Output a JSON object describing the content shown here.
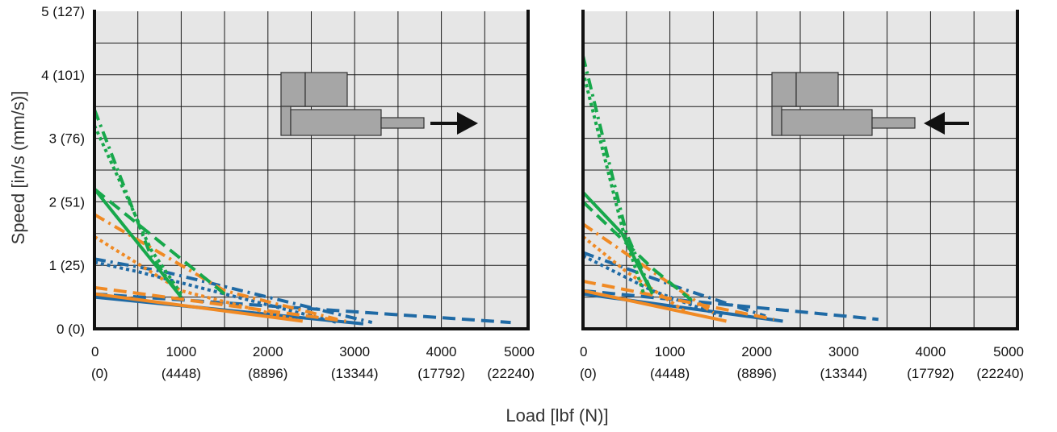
{
  "colors": {
    "blue": "#1f6aa5",
    "orange": "#f08a24",
    "green": "#17a84b",
    "panel_bg": "#e6e6e6",
    "grid": "#1a1a1a",
    "actuator_fill": "#a6a6a6",
    "arrow": "#111111"
  },
  "chart_data": [
    {
      "type": "line",
      "panel": "left",
      "direction_icon": "actuator-extend-arrow-right-icon",
      "xlim": [
        0,
        5000
      ],
      "ylim": [
        0,
        5
      ],
      "x_ticks": [
        {
          "value": 0,
          "label": "0",
          "sub": "(0)"
        },
        {
          "value": 1000,
          "label": "1000",
          "sub": "(4448)"
        },
        {
          "value": 2000,
          "label": "2000",
          "sub": "(8896)"
        },
        {
          "value": 3000,
          "label": "3000",
          "sub": "(13344)"
        },
        {
          "value": 4000,
          "label": "4000",
          "sub": "(17792)"
        },
        {
          "value": 5000,
          "label": "5000",
          "sub": "(22240)"
        }
      ],
      "y_ticks": [
        {
          "value": 0,
          "label": "0 (0)"
        },
        {
          "value": 1,
          "label": "1 (25)"
        },
        {
          "value": 2,
          "label": "2 (51)"
        },
        {
          "value": 3,
          "label": "3 (76)"
        },
        {
          "value": 4,
          "label": "4 (101)"
        },
        {
          "value": 5,
          "label": "5 (127)"
        }
      ],
      "grid": true,
      "series": [
        {
          "color": "blue",
          "dash": "solid",
          "points": [
            [
              0,
              0.5
            ],
            [
              3100,
              0.08
            ]
          ]
        },
        {
          "color": "blue",
          "dash": "dash",
          "points": [
            [
              0,
              0.55
            ],
            [
              4800,
              0.1
            ]
          ]
        },
        {
          "color": "blue",
          "dash": "dashdot",
          "points": [
            [
              0,
              1.1
            ],
            [
              800,
              0.9
            ],
            [
              2600,
              0.3
            ],
            [
              3200,
              0.1
            ]
          ]
        },
        {
          "color": "blue",
          "dash": "dot",
          "points": [
            [
              0,
              1.05
            ],
            [
              500,
              0.9
            ],
            [
              1500,
              0.55
            ],
            [
              2800,
              0.1
            ]
          ]
        },
        {
          "color": "orange",
          "dash": "solid",
          "points": [
            [
              0,
              0.55
            ],
            [
              2400,
              0.12
            ]
          ]
        },
        {
          "color": "orange",
          "dash": "dash",
          "points": [
            [
              0,
              0.65
            ],
            [
              2900,
              0.12
            ]
          ]
        },
        {
          "color": "orange",
          "dash": "dashdot",
          "points": [
            [
              0,
              1.8
            ],
            [
              1500,
              0.6
            ],
            [
              2800,
              0.15
            ]
          ]
        },
        {
          "color": "orange",
          "dash": "dot",
          "points": [
            [
              0,
              1.45
            ],
            [
              1000,
              0.6
            ],
            [
              2300,
              0.15
            ]
          ]
        },
        {
          "color": "green",
          "dash": "solid",
          "points": [
            [
              0,
              2.2
            ],
            [
              1000,
              0.5
            ]
          ]
        },
        {
          "color": "green",
          "dash": "dash",
          "points": [
            [
              0,
              2.2
            ],
            [
              1500,
              0.55
            ]
          ]
        },
        {
          "color": "green",
          "dash": "dashdot",
          "points": [
            [
              0,
              3.45
            ],
            [
              650,
              1.15
            ],
            [
              1000,
              0.5
            ]
          ]
        },
        {
          "color": "green",
          "dash": "dot",
          "points": [
            [
              0,
              3.2
            ],
            [
              650,
              1.25
            ],
            [
              1000,
              0.55
            ]
          ]
        }
      ]
    },
    {
      "type": "line",
      "panel": "right",
      "direction_icon": "actuator-retract-arrow-left-icon",
      "xlim": [
        0,
        5000
      ],
      "ylim": [
        0,
        5
      ],
      "x_ticks": [
        {
          "value": 0,
          "label": "0",
          "sub": "(0)"
        },
        {
          "value": 1000,
          "label": "1000",
          "sub": "(4448)"
        },
        {
          "value": 2000,
          "label": "2000",
          "sub": "(8896)"
        },
        {
          "value": 3000,
          "label": "3000",
          "sub": "(13344)"
        },
        {
          "value": 4000,
          "label": "4000",
          "sub": "(17792)"
        },
        {
          "value": 5000,
          "label": "5000",
          "sub": "(22240)"
        }
      ],
      "grid": true,
      "series": [
        {
          "color": "blue",
          "dash": "solid",
          "points": [
            [
              0,
              0.55
            ],
            [
              2300,
              0.12
            ]
          ]
        },
        {
          "color": "blue",
          "dash": "dash",
          "points": [
            [
              0,
              0.6
            ],
            [
              3400,
              0.15
            ]
          ]
        },
        {
          "color": "blue",
          "dash": "dashdot",
          "points": [
            [
              0,
              1.2
            ],
            [
              1100,
              0.65
            ],
            [
              2100,
              0.2
            ]
          ]
        },
        {
          "color": "blue",
          "dash": "dot",
          "points": [
            [
              0,
              1.15
            ],
            [
              800,
              0.6
            ],
            [
              1600,
              0.2
            ]
          ]
        },
        {
          "color": "orange",
          "dash": "solid",
          "points": [
            [
              0,
              0.6
            ],
            [
              1650,
              0.12
            ]
          ]
        },
        {
          "color": "orange",
          "dash": "dash",
          "points": [
            [
              0,
              0.75
            ],
            [
              2200,
              0.15
            ]
          ]
        },
        {
          "color": "orange",
          "dash": "dashdot",
          "points": [
            [
              0,
              1.65
            ],
            [
              800,
              0.9
            ],
            [
              1500,
              0.25
            ]
          ]
        },
        {
          "color": "orange",
          "dash": "dot",
          "points": [
            [
              0,
              1.45
            ],
            [
              500,
              0.9
            ],
            [
              1200,
              0.25
            ]
          ]
        },
        {
          "color": "green",
          "dash": "solid",
          "points": [
            [
              0,
              2.15
            ],
            [
              450,
              1.5
            ],
            [
              800,
              0.55
            ]
          ]
        },
        {
          "color": "green",
          "dash": "dash",
          "points": [
            [
              0,
              2.0
            ],
            [
              800,
              0.95
            ],
            [
              1250,
              0.45
            ]
          ]
        },
        {
          "color": "green",
          "dash": "dashdot",
          "points": [
            [
              0,
              4.3
            ],
            [
              500,
              1.5
            ],
            [
              800,
              0.55
            ]
          ]
        },
        {
          "color": "green",
          "dash": "dot",
          "points": [
            [
              0,
              4.05
            ],
            [
              450,
              1.6
            ],
            [
              700,
              0.55
            ]
          ]
        }
      ]
    }
  ],
  "labels": {
    "ylabel": "Speed [in/s (mm/s)]",
    "xlabel": "Load [lbf (N)]"
  }
}
